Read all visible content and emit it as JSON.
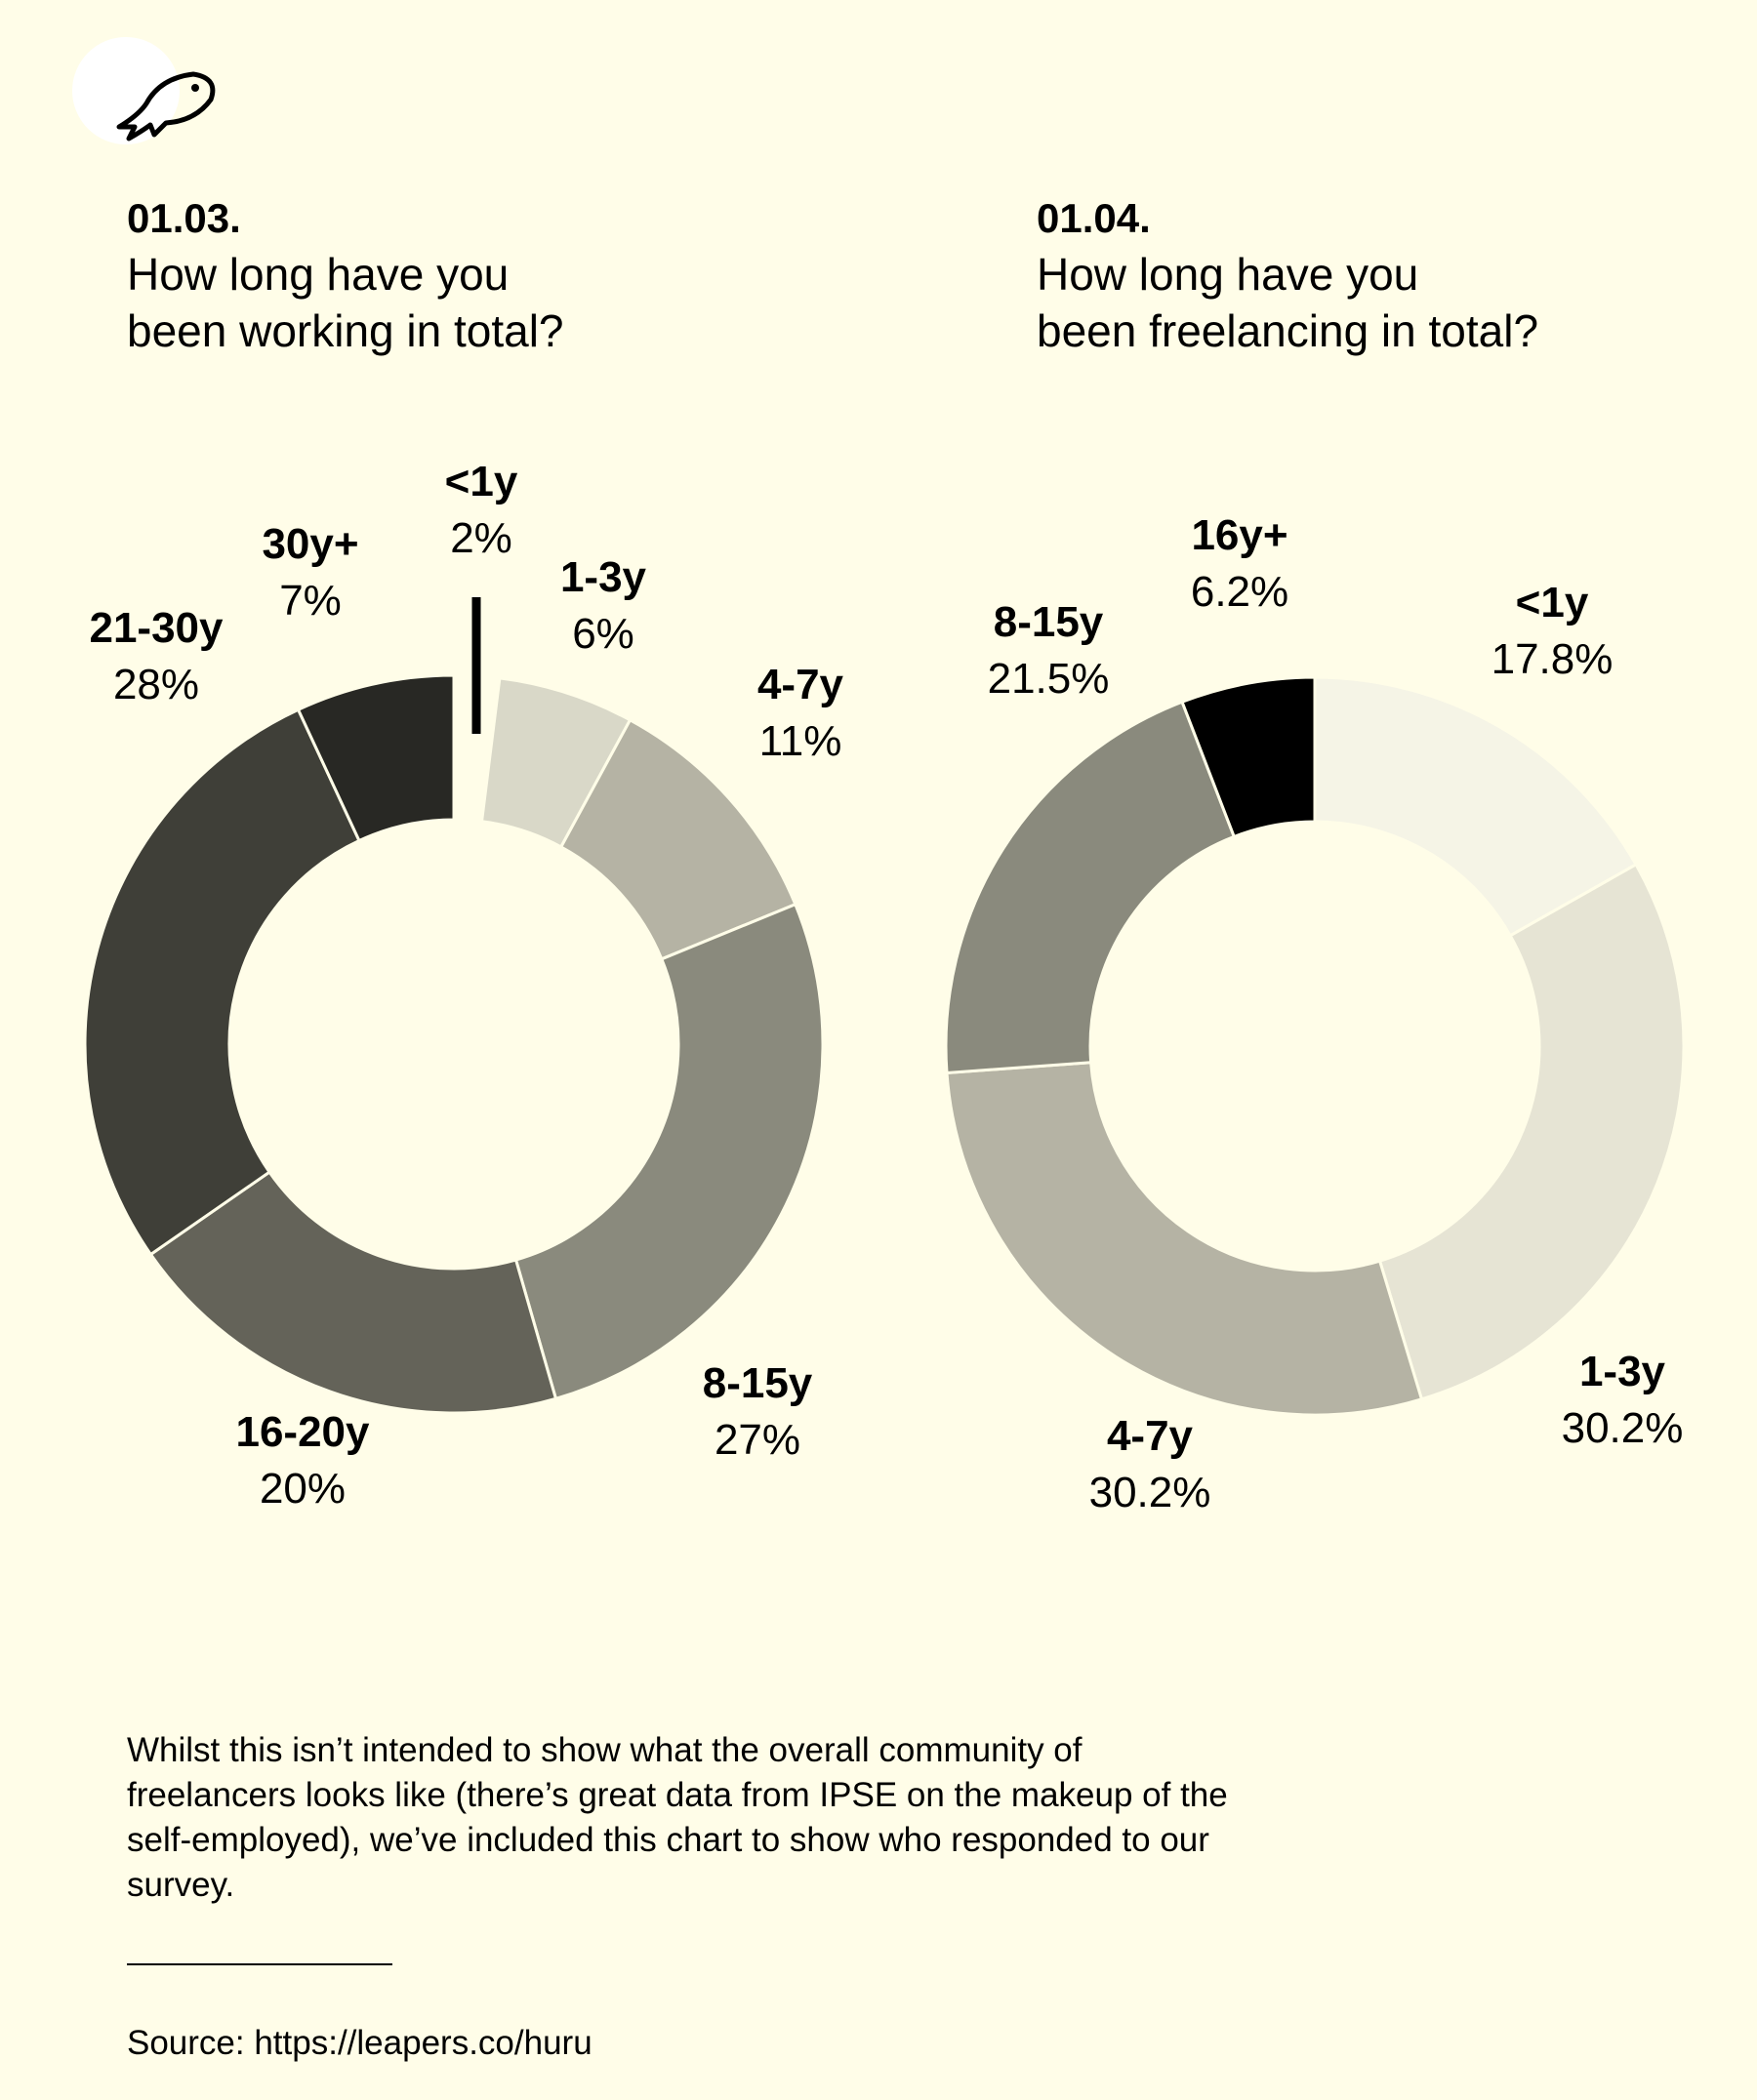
{
  "chart_data": [
    {
      "type": "pie",
      "number": "01.03.",
      "title_lines": [
        "How long have you",
        "been working in total?"
      ],
      "categories": [
        "<1y",
        "1-3y",
        "4-7y",
        "8-15y",
        "16-20y",
        "21-30y",
        "30y+"
      ],
      "values": [
        2,
        6,
        11,
        27,
        20,
        28,
        7
      ],
      "value_labels": [
        "2%",
        "6%",
        "11%",
        "27%",
        "20%",
        "28%",
        "7%"
      ],
      "unit": "%",
      "colors": [
        "#fffde8",
        "#d9d8c8",
        "#b5b3a4",
        "#8a8a7d",
        "#646359",
        "#3f3f38",
        "#282824"
      ],
      "highlight_pointer_category": "<1y"
    },
    {
      "type": "pie",
      "number": "01.04.",
      "title_lines": [
        "How long have you",
        "been freelancing in total?"
      ],
      "categories": [
        "<1y",
        "1-3y",
        "4-7y",
        "8-15y",
        "16y+"
      ],
      "values": [
        17.8,
        30.2,
        30.2,
        21.5,
        6.2
      ],
      "value_labels": [
        "17.8%",
        "30.2%",
        "30.2%",
        "21.5%",
        "6.2%"
      ],
      "unit": "%",
      "colors": [
        "#f5f4e6",
        "#e6e4d4",
        "#b5b3a4",
        "#8a8a7d",
        "#000000"
      ]
    }
  ],
  "note": "Whilst this isn’t intended to show what the overall community of freelancers looks like (there’s great data from IPSE on the makeup of the self-employed), we’ve included this chart to show who responded to our survey.",
  "source": "Source: https://leapers.co/huru",
  "logo_icon": "fish-icon"
}
